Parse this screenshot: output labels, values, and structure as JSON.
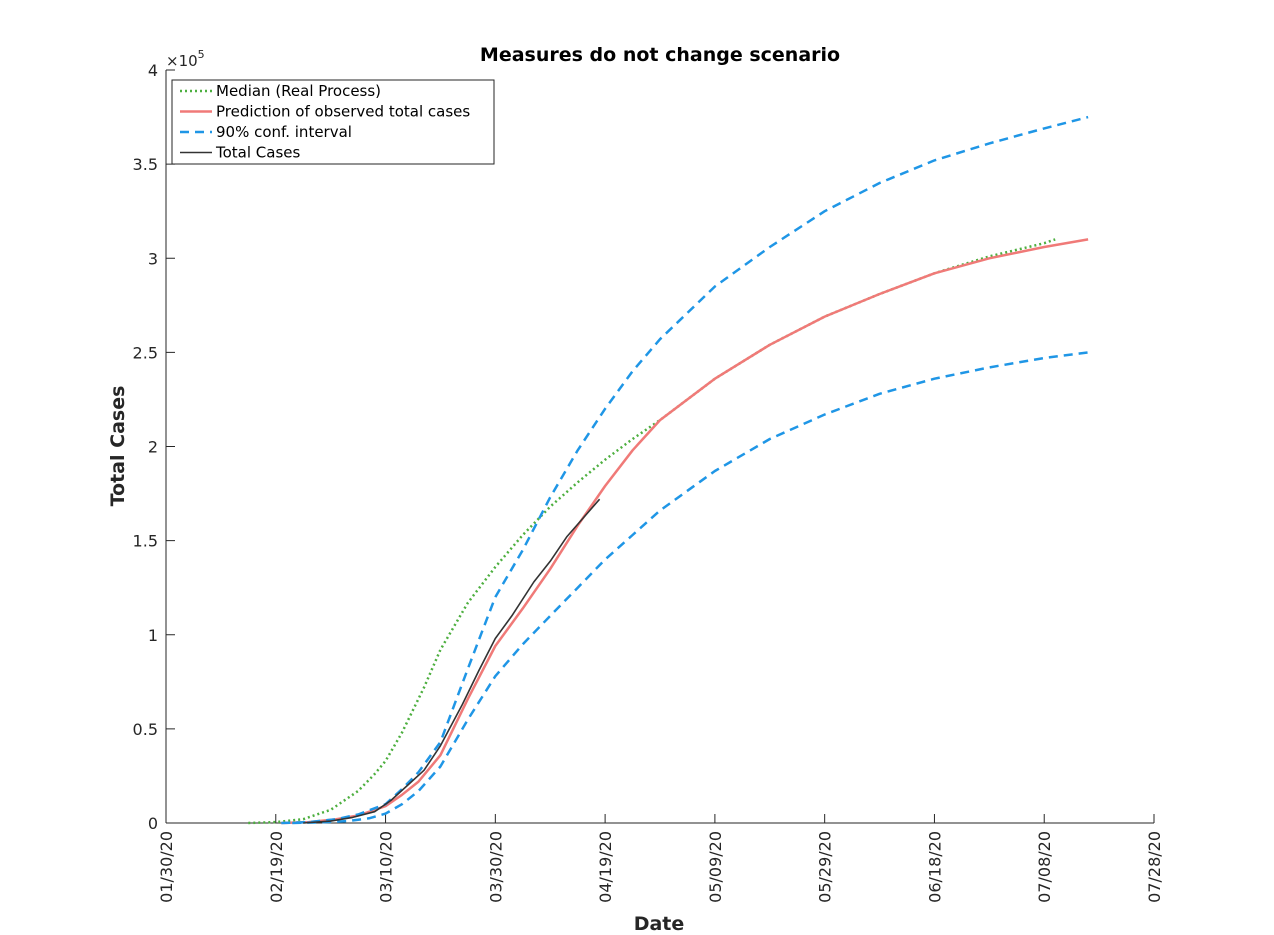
{
  "chart_data": {
    "type": "line",
    "title": "Measures do not change scenario",
    "xlabel": "Date",
    "ylabel": "Total Cases",
    "y_exponent_label": "×10^5",
    "y_exponent_base": "×10",
    "y_exponent_power": "5",
    "xlim": [
      "01/30/20",
      "07/28/20"
    ],
    "x_ticks": [
      "01/30/20",
      "02/19/20",
      "03/10/20",
      "03/30/20",
      "04/19/20",
      "05/09/20",
      "05/29/20",
      "06/18/20",
      "07/08/20",
      "07/28/20"
    ],
    "ylim": [
      0,
      4
    ],
    "y_ticks": [
      "0",
      "0.5",
      "1",
      "1.5",
      "2",
      "2.5",
      "3",
      "3.5",
      "4"
    ],
    "y_unit_multiplier": 100000,
    "grid": false,
    "legend_position": "top-left",
    "series": [
      {
        "name": "Median (Real Process)",
        "color": "#4daf3f",
        "style": "dotted",
        "x": [
          "02/14/20",
          "02/19/20",
          "02/24/20",
          "02/29/20",
          "03/05/20",
          "03/08/20",
          "03/10/20",
          "03/13/20",
          "03/15/20",
          "03/17/20",
          "03/20/20",
          "03/25/20",
          "03/30/20",
          "04/04/20",
          "04/09/20",
          "04/14/20",
          "04/19/20",
          "04/24/20",
          "04/29/20",
          "05/09/20",
          "05/19/20",
          "05/29/20",
          "06/08/20",
          "06/18/20",
          "06/28/20",
          "07/08/20",
          "07/10/20"
        ],
        "y": [
          0.0,
          0.005,
          0.02,
          0.07,
          0.17,
          0.26,
          0.33,
          0.48,
          0.6,
          0.72,
          0.92,
          1.17,
          1.36,
          1.53,
          1.68,
          1.81,
          1.93,
          2.04,
          2.14,
          2.36,
          2.54,
          2.69,
          2.81,
          2.92,
          3.01,
          3.08,
          3.1
        ]
      },
      {
        "name": "Prediction of observed total cases",
        "color": "#f07a78",
        "style": "solid",
        "x": [
          "02/20/20",
          "02/25/20",
          "03/01/20",
          "03/05/20",
          "03/10/20",
          "03/13/20",
          "03/16/20",
          "03/20/20",
          "03/25/20",
          "03/30/20",
          "04/04/20",
          "04/09/20",
          "04/14/20",
          "04/19/20",
          "04/24/20",
          "04/29/20",
          "05/09/20",
          "05/19/20",
          "05/29/20",
          "06/08/20",
          "06/18/20",
          "06/28/20",
          "07/08/20",
          "07/16/20"
        ],
        "y": [
          0.0,
          0.005,
          0.02,
          0.04,
          0.09,
          0.15,
          0.22,
          0.36,
          0.66,
          0.94,
          1.14,
          1.35,
          1.58,
          1.79,
          1.98,
          2.14,
          2.36,
          2.54,
          2.69,
          2.81,
          2.92,
          3.0,
          3.06,
          3.1
        ]
      },
      {
        "name": "90% conf. interval",
        "color": "#1f96e6",
        "style": "dashed",
        "x": [
          "02/20/20",
          "02/25/20",
          "03/01/20",
          "03/05/20",
          "03/10/20",
          "03/13/20",
          "03/16/20",
          "03/20/20",
          "03/25/20",
          "03/30/20",
          "04/04/20",
          "04/09/20",
          "04/14/20",
          "04/19/20",
          "04/24/20",
          "04/29/20",
          "05/09/20",
          "05/19/20",
          "05/29/20",
          "06/08/20",
          "06/18/20",
          "06/28/20",
          "07/08/20",
          "07/16/20"
        ],
        "y": [
          0.0,
          0.005,
          0.02,
          0.045,
          0.1,
          0.18,
          0.27,
          0.43,
          0.82,
          1.2,
          1.45,
          1.73,
          1.98,
          2.2,
          2.4,
          2.57,
          2.85,
          3.06,
          3.25,
          3.4,
          3.52,
          3.61,
          3.69,
          3.75
        ]
      },
      {
        "name": "90% conf. interval (lower)",
        "legend": false,
        "color": "#1f96e6",
        "style": "dashed",
        "x": [
          "02/22/20",
          "02/27/20",
          "03/03/20",
          "03/07/20",
          "03/10/20",
          "03/13/20",
          "03/16/20",
          "03/20/20",
          "03/25/20",
          "03/30/20",
          "04/04/20",
          "04/09/20",
          "04/14/20",
          "04/19/20",
          "04/24/20",
          "04/29/20",
          "05/09/20",
          "05/19/20",
          "05/29/20",
          "06/08/20",
          "06/18/20",
          "06/28/20",
          "07/08/20",
          "07/16/20"
        ],
        "y": [
          0.0,
          0.003,
          0.01,
          0.025,
          0.05,
          0.1,
          0.17,
          0.3,
          0.55,
          0.78,
          0.95,
          1.1,
          1.25,
          1.4,
          1.53,
          1.66,
          1.87,
          2.04,
          2.17,
          2.28,
          2.36,
          2.42,
          2.47,
          2.5
        ]
      },
      {
        "name": "Total Cases",
        "color": "#333333",
        "style": "solid",
        "x": [
          "02/24/20",
          "02/29/20",
          "03/04/20",
          "03/08/20",
          "03/11/20",
          "03/14/20",
          "03/17/20",
          "03/20/20",
          "03/24/20",
          "03/27/20",
          "03/30/20",
          "04/02/20",
          "04/06/20",
          "04/09/20",
          "04/12/20",
          "04/15/20",
          "04/18/20"
        ],
        "y": [
          0.0,
          0.01,
          0.03,
          0.06,
          0.12,
          0.2,
          0.28,
          0.41,
          0.63,
          0.81,
          0.98,
          1.1,
          1.28,
          1.39,
          1.52,
          1.62,
          1.72
        ]
      }
    ]
  }
}
